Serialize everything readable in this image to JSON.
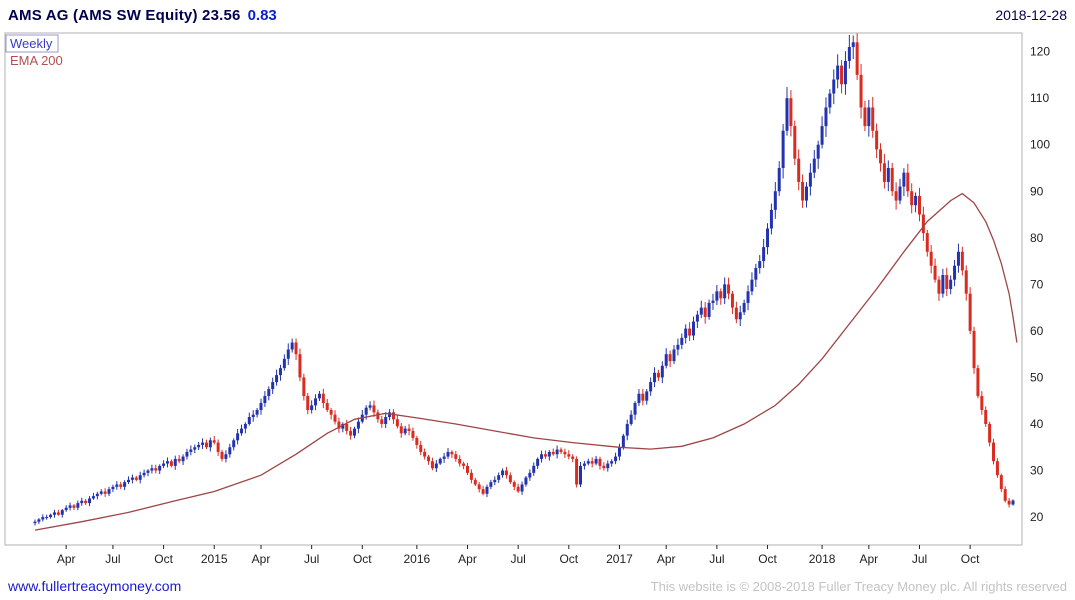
{
  "header": {
    "title": "AMS AG (AMS SW Equity) 23.56",
    "change": "0.83",
    "date": "2018-12-28"
  },
  "legend": {
    "timeframe": "Weekly",
    "overlay": "EMA 200"
  },
  "footer": {
    "site": "www.fullertreacymoney.com",
    "copyright": "This website is © 2008-2018 Fuller Treacy Money plc. All rights reserved"
  },
  "colors": {
    "up": "#2333ae",
    "down": "#d92b20",
    "ema": "#9e4545",
    "title": "#00004e",
    "change": "#0a1fd4",
    "weekly_label": "#3a3ac2",
    "ema_label": "#b05050",
    "axis_text": "#222222",
    "plot_border": "#b0b0b0",
    "link": "#1a1acd",
    "copyright_text": "#c3c3c3"
  },
  "chart_data": {
    "type": "candlestick",
    "instrument": "AMS AG (AMS SW Equity)",
    "timeframe": "Weekly",
    "overlay": "EMA 200",
    "last_price": 23.56,
    "change": 0.83,
    "as_of": "2018-12-28",
    "start_month": "2014-02",
    "frequency": "weekly",
    "grid": false,
    "legend_position": "top-left",
    "y_axis_side": "right",
    "ylim": [
      14,
      124
    ],
    "y_ticks": [
      20,
      30,
      40,
      50,
      60,
      70,
      80,
      90,
      100,
      110,
      120
    ],
    "x_ticks": [
      {
        "label": "Apr",
        "week": 8
      },
      {
        "label": "Jul",
        "week": 20
      },
      {
        "label": "Oct",
        "week": 33
      },
      {
        "label": "2015",
        "week": 46
      },
      {
        "label": "Apr",
        "week": 58
      },
      {
        "label": "Jul",
        "week": 71
      },
      {
        "label": "Oct",
        "week": 84
      },
      {
        "label": "2016",
        "week": 98
      },
      {
        "label": "Apr",
        "week": 111
      },
      {
        "label": "Jul",
        "week": 124
      },
      {
        "label": "Oct",
        "week": 137
      },
      {
        "label": "2017",
        "week": 150
      },
      {
        "label": "Apr",
        "week": 162
      },
      {
        "label": "Jul",
        "week": 175
      },
      {
        "label": "Oct",
        "week": 188
      },
      {
        "label": "2018",
        "week": 202
      },
      {
        "label": "Apr",
        "week": 214
      },
      {
        "label": "Jul",
        "week": 227
      },
      {
        "label": "Oct",
        "week": 240
      }
    ],
    "closes": [
      19,
      19.5,
      20,
      20,
      20.5,
      21,
      20.5,
      21.5,
      22,
      22.5,
      22,
      23,
      23.5,
      23,
      24,
      24.5,
      25,
      25.5,
      25,
      26,
      26.5,
      27,
      26.5,
      27.5,
      28,
      28.5,
      28,
      29,
      29.5,
      30,
      30.5,
      30,
      31,
      31.5,
      32,
      31,
      32.5,
      32,
      33,
      34,
      34.5,
      35,
      35.5,
      36,
      35,
      36.5,
      36,
      34,
      32.5,
      33.5,
      35,
      36.5,
      38,
      39,
      40,
      41.5,
      42,
      43,
      44.5,
      46,
      47.5,
      49,
      50.5,
      52,
      54,
      56,
      57.5,
      55,
      50,
      46,
      43,
      44,
      45.5,
      46.5,
      44.5,
      43,
      42,
      40.5,
      39,
      40,
      38.5,
      37.5,
      39,
      40.5,
      42,
      43.5,
      44,
      42.5,
      41,
      40,
      41.5,
      42.5,
      41,
      39.5,
      38,
      39,
      38.5,
      37,
      35.5,
      34,
      33,
      32,
      30.5,
      31.5,
      32.5,
      33,
      34,
      33.5,
      32.5,
      31.5,
      31,
      29.5,
      28,
      27,
      26,
      25,
      26.5,
      27.5,
      28,
      29,
      30,
      29,
      27.5,
      26.5,
      25.5,
      27,
      28.5,
      29.5,
      31,
      32.5,
      33.5,
      33,
      34,
      33.5,
      34.5,
      34,
      33.5,
      33,
      32.5,
      27,
      31,
      31.5,
      32,
      31.5,
      32.5,
      31,
      30.5,
      31.5,
      32,
      33,
      35,
      37.5,
      40,
      42,
      44.5,
      46.5,
      45,
      47,
      49,
      51,
      50,
      52.5,
      55,
      53.5,
      56,
      57,
      58.5,
      60.5,
      59,
      62,
      63.5,
      65,
      63,
      66,
      66.5,
      68.5,
      67,
      70,
      68,
      65,
      62.5,
      64,
      66,
      68.5,
      71,
      73.5,
      75,
      78,
      82,
      86,
      90,
      95,
      103,
      110,
      104,
      97,
      92,
      88,
      91,
      94,
      97,
      100,
      104,
      108,
      111,
      114,
      117,
      113,
      118,
      121,
      122,
      115,
      108,
      104,
      108,
      103,
      99,
      96,
      92,
      95,
      90,
      88,
      91,
      94,
      90,
      87,
      89,
      85,
      81,
      77,
      74,
      71,
      68,
      72,
      69,
      71,
      74,
      77,
      73,
      68,
      60,
      52,
      46,
      43,
      40,
      36,
      32,
      29,
      26,
      23.5,
      22.7,
      23.56
    ],
    "ema_200_anchors": [
      [
        0,
        17.2
      ],
      [
        12,
        19
      ],
      [
        24,
        21
      ],
      [
        36,
        23.5
      ],
      [
        46,
        25.5
      ],
      [
        58,
        29
      ],
      [
        67,
        33.5
      ],
      [
        75,
        38
      ],
      [
        82,
        41
      ],
      [
        90,
        42.3
      ],
      [
        98,
        41.3
      ],
      [
        108,
        40
      ],
      [
        118,
        38.5
      ],
      [
        128,
        37
      ],
      [
        138,
        36
      ],
      [
        150,
        35
      ],
      [
        158,
        34.6
      ],
      [
        166,
        35.2
      ],
      [
        174,
        37
      ],
      [
        182,
        40
      ],
      [
        190,
        44
      ],
      [
        196,
        48.5
      ],
      [
        202,
        54
      ],
      [
        209,
        61.5
      ],
      [
        216,
        69
      ],
      [
        223,
        77
      ],
      [
        229,
        83.5
      ],
      [
        235,
        88
      ],
      [
        238,
        89.5
      ],
      [
        241,
        87.5
      ],
      [
        244,
        83.5
      ],
      [
        246,
        79.5
      ],
      [
        248,
        74.5
      ],
      [
        250,
        68
      ],
      [
        251,
        63
      ],
      [
        252,
        57.5
      ]
    ]
  }
}
